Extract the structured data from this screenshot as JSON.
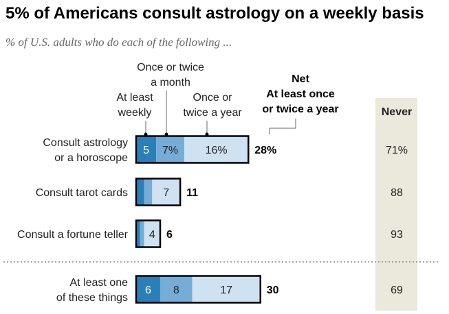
{
  "title": "5% of Americans consult astrology on a weekly basis",
  "subtitle": "% of U.S. adults who do each of the following ...",
  "chart_data": {
    "type": "bar",
    "stacked": true,
    "categories": [
      [
        "Consult astrology",
        "or a horoscope"
      ],
      [
        "Consult tarot cards"
      ],
      [
        "Consult a fortune teller"
      ],
      [
        "At least one",
        "of these things"
      ]
    ],
    "series": [
      {
        "name": "At least weekly",
        "color": "#2a7fb8",
        "values": [
          5,
          2,
          1,
          6
        ],
        "labels": [
          "5",
          "",
          "",
          "6"
        ]
      },
      {
        "name": "Once or twice a month",
        "color": "#75add6",
        "values": [
          7,
          2,
          1,
          8
        ],
        "labels": [
          "7%",
          "",
          "",
          "8"
        ]
      },
      {
        "name": "Once or twice a year",
        "color": "#cfe2f1",
        "values": [
          16,
          7,
          4,
          17
        ],
        "labels": [
          "16%",
          "7",
          "4",
          "17"
        ]
      }
    ],
    "legend_labels": [
      [
        "At least",
        "weekly"
      ],
      [
        "Once or twice",
        "a month"
      ],
      [
        "Once or",
        "twice a year"
      ]
    ],
    "net": {
      "header": [
        "Net",
        "At least once",
        "or twice a year"
      ],
      "values": [
        "28%",
        "11",
        "6",
        "30"
      ]
    },
    "never": {
      "header": "Never",
      "values": [
        "71%",
        "88",
        "93",
        "69"
      ]
    }
  }
}
